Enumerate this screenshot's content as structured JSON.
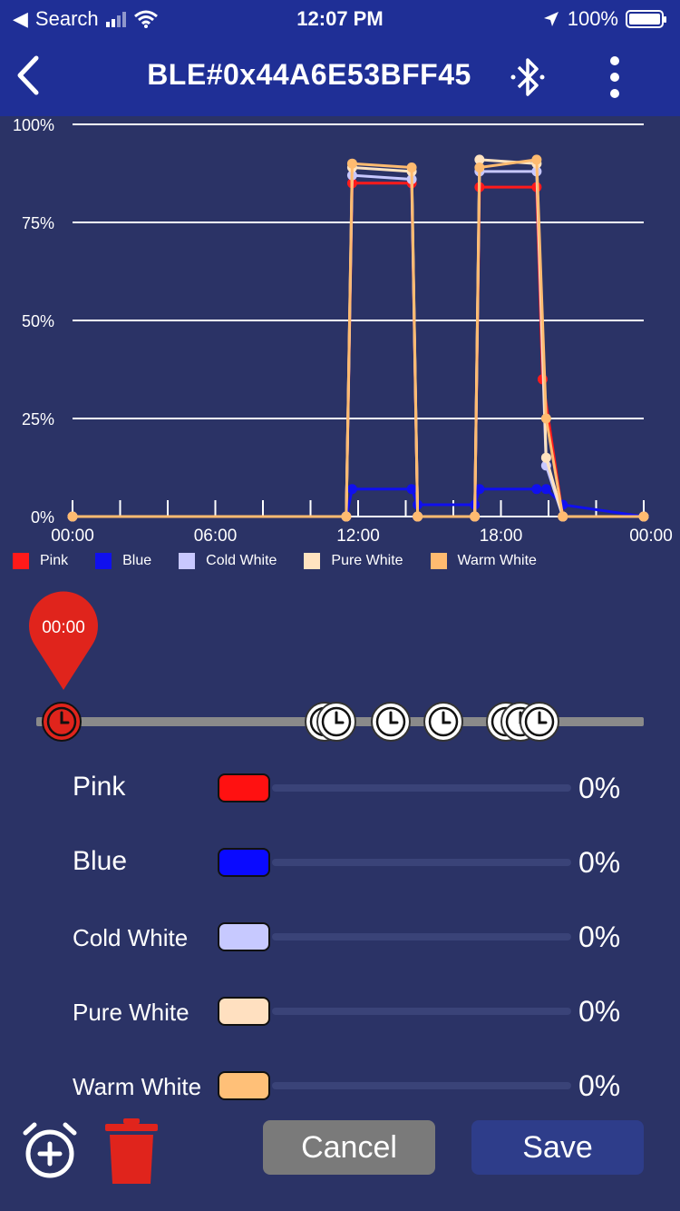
{
  "status_bar": {
    "back_app": "Search",
    "time": "12:07 PM",
    "battery": "100%"
  },
  "header": {
    "title": "BLE#0x44A6E53BFF45",
    "back_icon": "chevron-left-icon",
    "bluetooth_icon": "bluetooth-icon",
    "more_icon": "more-vertical-icon"
  },
  "chart_data": {
    "type": "line",
    "x_ticks": [
      "00:00",
      "06:00",
      "12:00",
      "18:00",
      "00:00"
    ],
    "y_ticks": [
      "0%",
      "25%",
      "50%",
      "75%",
      "100%"
    ],
    "ylim": [
      0,
      100
    ],
    "xlim_hours": [
      0,
      24
    ],
    "grid": true,
    "legend": "bottom",
    "series": [
      {
        "name": "Pink",
        "color": "#ff1a1a",
        "points": [
          [
            0,
            0
          ],
          [
            11.5,
            0
          ],
          [
            11.75,
            85
          ],
          [
            14.25,
            85
          ],
          [
            14.5,
            0
          ],
          [
            16.9,
            0
          ],
          [
            17.1,
            84
          ],
          [
            19.5,
            84
          ],
          [
            19.75,
            35
          ],
          [
            20.6,
            0
          ],
          [
            24,
            0
          ]
        ]
      },
      {
        "name": "Blue",
        "color": "#1010ee",
        "points": [
          [
            0,
            0
          ],
          [
            11.5,
            0
          ],
          [
            11.75,
            7
          ],
          [
            14.25,
            7
          ],
          [
            14.5,
            3
          ],
          [
            16.9,
            3
          ],
          [
            17.1,
            7
          ],
          [
            19.5,
            7
          ],
          [
            19.9,
            7
          ],
          [
            20.6,
            3
          ],
          [
            24,
            0
          ]
        ]
      },
      {
        "name": "Cold White",
        "color": "#c8c8ff",
        "points": [
          [
            0,
            0
          ],
          [
            11.5,
            0
          ],
          [
            11.75,
            87
          ],
          [
            14.25,
            86
          ],
          [
            14.5,
            0
          ],
          [
            16.9,
            0
          ],
          [
            17.1,
            88
          ],
          [
            19.5,
            88
          ],
          [
            19.9,
            13
          ],
          [
            20.6,
            0
          ],
          [
            24,
            0
          ]
        ]
      },
      {
        "name": "Pure White",
        "color": "#ffe3c0",
        "points": [
          [
            0,
            0
          ],
          [
            11.5,
            0
          ],
          [
            11.75,
            89
          ],
          [
            14.25,
            88
          ],
          [
            14.5,
            0
          ],
          [
            16.9,
            0
          ],
          [
            17.1,
            91
          ],
          [
            19.5,
            90
          ],
          [
            19.9,
            15
          ],
          [
            20.6,
            0
          ],
          [
            24,
            0
          ]
        ]
      },
      {
        "name": "Warm White",
        "color": "#ffbb70",
        "points": [
          [
            0,
            0
          ],
          [
            11.5,
            0
          ],
          [
            11.75,
            90
          ],
          [
            14.25,
            89
          ],
          [
            14.5,
            0
          ],
          [
            16.9,
            0
          ],
          [
            17.1,
            89
          ],
          [
            19.5,
            91
          ],
          [
            19.9,
            25
          ],
          [
            20.6,
            0
          ],
          [
            24,
            0
          ]
        ]
      }
    ]
  },
  "timeline": {
    "selected_time": "00:00",
    "markers_hours": [
      0,
      11.0,
      11.5,
      13.8,
      16.0,
      18.6,
      19.2,
      20.0
    ]
  },
  "channels": [
    {
      "label": "Pink",
      "value": "0%",
      "color": "#ff1111"
    },
    {
      "label": "Blue",
      "value": "0%",
      "color": "#0a0aff"
    },
    {
      "label": "Cold White",
      "value": "0%",
      "color": "#c7c9ff"
    },
    {
      "label": "Pure White",
      "value": "0%",
      "color": "#ffe0c0"
    },
    {
      "label": "Warm White",
      "value": "0%",
      "color": "#ffc078"
    }
  ],
  "actions": {
    "add_alarm_icon": "alarm-add-icon",
    "delete_icon": "trash-icon",
    "cancel": "Cancel",
    "save": "Save"
  }
}
